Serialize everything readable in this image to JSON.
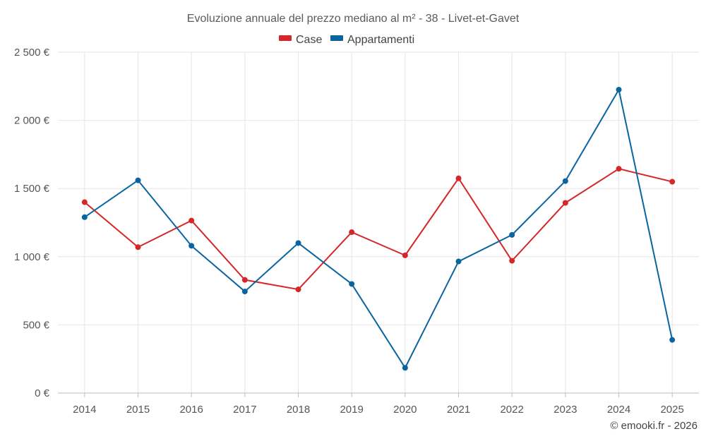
{
  "chart_data": {
    "type": "line",
    "title": "Evoluzione annuale del prezzo mediano al m² - 38 - Livet-et-Gavet",
    "xlabel": "",
    "ylabel": "",
    "categories": [
      "2014",
      "2015",
      "2016",
      "2017",
      "2018",
      "2019",
      "2020",
      "2021",
      "2022",
      "2023",
      "2024",
      "2025"
    ],
    "ylim": [
      0,
      2500
    ],
    "y_ticks": [
      0,
      500,
      1000,
      1500,
      2000,
      2500
    ],
    "y_tick_labels": [
      "0 €",
      "500 €",
      "1 000 €",
      "1 500 €",
      "2 000 €",
      "2 500 €"
    ],
    "grid": true,
    "legend_position": "top-center",
    "series": [
      {
        "name": "Case",
        "color": "#d62728",
        "values": [
          1400,
          1070,
          1265,
          830,
          760,
          1180,
          1010,
          1575,
          970,
          1395,
          1645,
          1550
        ]
      },
      {
        "name": "Appartamenti",
        "color": "#0a64a0",
        "values": [
          1290,
          1560,
          1080,
          745,
          1100,
          800,
          185,
          965,
          1160,
          1555,
          2225,
          390
        ]
      }
    ]
  },
  "credit": "© emooki.fr - 2026"
}
